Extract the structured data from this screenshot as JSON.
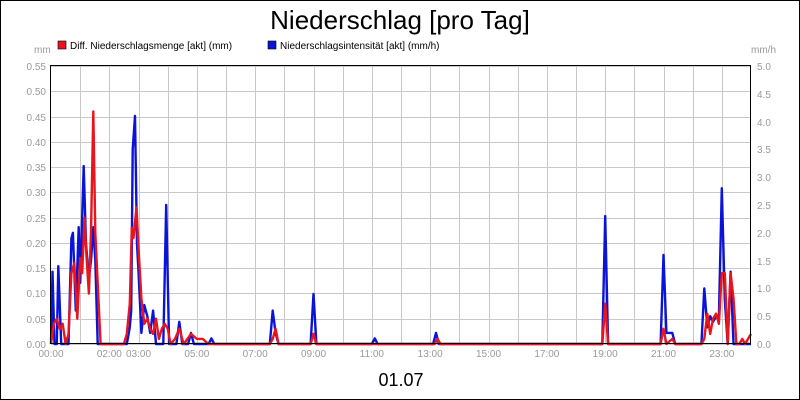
{
  "chart_data": {
    "type": "line",
    "title": "Niederschlag [pro Tag]",
    "date_label": "01.07",
    "y_left": {
      "unit": "mm",
      "ylim": [
        0,
        0.55
      ],
      "ticks": [
        "0.00",
        "0.05",
        "0.10",
        "0.15",
        "0.20",
        "0.25",
        "0.30",
        "0.35",
        "0.40",
        "0.45",
        "0.50",
        "0.55"
      ]
    },
    "y_right": {
      "unit": "mm/h",
      "ylim": [
        0,
        5.0
      ],
      "ticks": [
        "0.0",
        "0.5",
        "1.0",
        "1.5",
        "2.0",
        "2.5",
        "3.0",
        "3.5",
        "4.0",
        "4.5",
        "5.0"
      ]
    },
    "x": {
      "range_hours": [
        0,
        24
      ],
      "ticks": [
        {
          "h": 0,
          "label": "00:00"
        },
        {
          "h": 2,
          "label": "02:00"
        },
        {
          "h": 3,
          "label": "03:00"
        },
        {
          "h": 5,
          "label": "05:00"
        },
        {
          "h": 7,
          "label": "07:00"
        },
        {
          "h": 9,
          "label": "09:00"
        },
        {
          "h": 11,
          "label": "11:00"
        },
        {
          "h": 13,
          "label": "13:00"
        },
        {
          "h": 15,
          "label": "15:00"
        },
        {
          "h": 17,
          "label": "17:00"
        },
        {
          "h": 19,
          "label": "19:00"
        },
        {
          "h": 21,
          "label": "21:00"
        },
        {
          "h": 23,
          "label": "23:00"
        }
      ]
    },
    "grid": true,
    "legend_position": "top-left",
    "series": [
      {
        "name": "Diff. Niederschlagsmenge [akt] (mm)",
        "color": "#e8141e",
        "axis": "left",
        "points": [
          [
            0.0,
            0
          ],
          [
            0.1,
            0.04
          ],
          [
            0.2,
            0.05
          ],
          [
            0.3,
            0.03
          ],
          [
            0.4,
            0.04
          ],
          [
            0.5,
            0
          ],
          [
            0.6,
            0.02
          ],
          [
            0.7,
            0.14
          ],
          [
            0.8,
            0.16
          ],
          [
            0.9,
            0.05
          ],
          [
            1.0,
            0.17
          ],
          [
            1.07,
            0.14
          ],
          [
            1.15,
            0.25
          ],
          [
            1.22,
            0.17
          ],
          [
            1.3,
            0.1
          ],
          [
            1.37,
            0.22
          ],
          [
            1.45,
            0.46
          ],
          [
            1.52,
            0.22
          ],
          [
            1.6,
            0.12
          ],
          [
            1.7,
            0
          ],
          [
            2.5,
            0
          ],
          [
            2.6,
            0.02
          ],
          [
            2.7,
            0.08
          ],
          [
            2.77,
            0.23
          ],
          [
            2.83,
            0.21
          ],
          [
            2.93,
            0.27
          ],
          [
            3.0,
            0.19
          ],
          [
            3.1,
            0.09
          ],
          [
            3.2,
            0.04
          ],
          [
            3.3,
            0.05
          ],
          [
            3.4,
            0.03
          ],
          [
            3.5,
            0.02
          ],
          [
            3.6,
            0.05
          ],
          [
            3.7,
            0.01
          ],
          [
            3.8,
            0.03
          ],
          [
            3.9,
            0.04
          ],
          [
            4.0,
            0.03
          ],
          [
            4.1,
            0
          ],
          [
            4.25,
            0.01
          ],
          [
            4.4,
            0.03
          ],
          [
            4.55,
            0
          ],
          [
            4.8,
            0.02
          ],
          [
            5.0,
            0.01
          ],
          [
            5.2,
            0.01
          ],
          [
            5.4,
            0
          ],
          [
            7.5,
            0
          ],
          [
            7.6,
            0.01
          ],
          [
            7.7,
            0.03
          ],
          [
            7.8,
            0
          ],
          [
            8.9,
            0
          ],
          [
            9.0,
            0.02
          ],
          [
            9.1,
            0
          ],
          [
            13.15,
            0
          ],
          [
            13.25,
            0.01
          ],
          [
            13.35,
            0
          ],
          [
            18.9,
            0
          ],
          [
            19.0,
            0.08
          ],
          [
            19.1,
            0
          ],
          [
            20.9,
            0
          ],
          [
            21.0,
            0.03
          ],
          [
            21.1,
            0
          ],
          [
            21.3,
            0.01
          ],
          [
            21.4,
            0
          ],
          [
            22.3,
            0
          ],
          [
            22.4,
            0.01
          ],
          [
            22.5,
            0.06
          ],
          [
            22.6,
            0.02
          ],
          [
            22.7,
            0.05
          ],
          [
            22.8,
            0.06
          ],
          [
            22.9,
            0.04
          ],
          [
            23.0,
            0.14
          ],
          [
            23.1,
            0.14
          ],
          [
            23.2,
            0
          ],
          [
            23.3,
            0.14
          ],
          [
            23.4,
            0.09
          ],
          [
            23.5,
            0
          ],
          [
            23.6,
            0
          ],
          [
            23.7,
            0.01
          ],
          [
            23.8,
            0
          ],
          [
            23.9,
            0.01
          ],
          [
            24.0,
            0.02
          ]
        ]
      },
      {
        "name": "Niederschlagsintensität [akt] (mm/h)",
        "color": "#0a14d8",
        "axis": "right",
        "points": [
          [
            0.0,
            0
          ],
          [
            0.05,
            1.3
          ],
          [
            0.12,
            0
          ],
          [
            0.2,
            0
          ],
          [
            0.25,
            1.4
          ],
          [
            0.35,
            0
          ],
          [
            0.6,
            0
          ],
          [
            0.7,
            1.9
          ],
          [
            0.75,
            2.0
          ],
          [
            0.85,
            0.6
          ],
          [
            0.95,
            2.1
          ],
          [
            1.0,
            1.1
          ],
          [
            1.12,
            3.2
          ],
          [
            1.2,
            1.8
          ],
          [
            1.3,
            1.2
          ],
          [
            1.37,
            1.5
          ],
          [
            1.45,
            2.1
          ],
          [
            1.52,
            1.5
          ],
          [
            1.6,
            0
          ],
          [
            2.6,
            0
          ],
          [
            2.7,
            0.3
          ],
          [
            2.75,
            0.6
          ],
          [
            2.8,
            3.5
          ],
          [
            2.88,
            4.1
          ],
          [
            2.95,
            1.8
          ],
          [
            3.0,
            1.3
          ],
          [
            3.1,
            0.2
          ],
          [
            3.2,
            0.7
          ],
          [
            3.3,
            0.5
          ],
          [
            3.4,
            0.2
          ],
          [
            3.5,
            0.6
          ],
          [
            3.6,
            0
          ],
          [
            3.85,
            0
          ],
          [
            3.95,
            2.5
          ],
          [
            4.05,
            0
          ],
          [
            4.3,
            0
          ],
          [
            4.4,
            0.4
          ],
          [
            4.5,
            0
          ],
          [
            4.7,
            0
          ],
          [
            4.8,
            0.2
          ],
          [
            4.9,
            0
          ],
          [
            5.4,
            0
          ],
          [
            5.5,
            0.1
          ],
          [
            5.6,
            0
          ],
          [
            7.5,
            0
          ],
          [
            7.6,
            0.6
          ],
          [
            7.7,
            0.2
          ],
          [
            7.8,
            0
          ],
          [
            8.9,
            0
          ],
          [
            9.0,
            0.9
          ],
          [
            9.1,
            0
          ],
          [
            11.0,
            0
          ],
          [
            11.1,
            0.1
          ],
          [
            11.2,
            0
          ],
          [
            13.1,
            0
          ],
          [
            13.2,
            0.2
          ],
          [
            13.3,
            0
          ],
          [
            18.9,
            0
          ],
          [
            19.0,
            2.3
          ],
          [
            19.1,
            0
          ],
          [
            20.9,
            0
          ],
          [
            21.0,
            1.6
          ],
          [
            21.1,
            0.2
          ],
          [
            21.2,
            0.2
          ],
          [
            21.3,
            0.2
          ],
          [
            21.4,
            0
          ],
          [
            22.3,
            0
          ],
          [
            22.4,
            1.0
          ],
          [
            22.5,
            0.3
          ],
          [
            22.6,
            0.5
          ],
          [
            22.7,
            0.4
          ],
          [
            22.8,
            0.5
          ],
          [
            22.9,
            0.5
          ],
          [
            23.0,
            2.8
          ],
          [
            23.1,
            0.8
          ],
          [
            23.2,
            0
          ],
          [
            23.3,
            1.3
          ],
          [
            23.4,
            0
          ],
          [
            24.0,
            0
          ]
        ]
      }
    ]
  }
}
